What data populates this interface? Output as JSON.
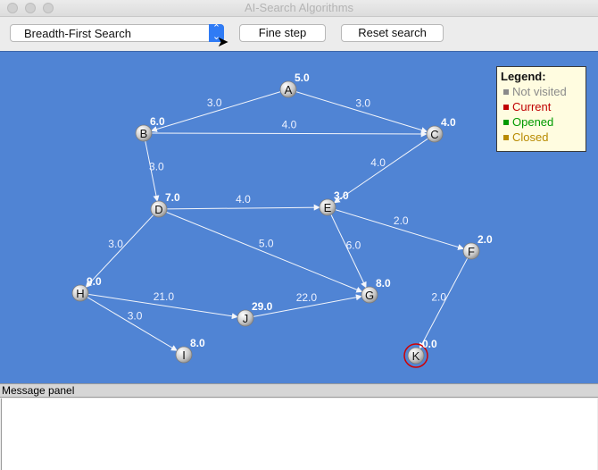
{
  "window": {
    "title": "AI-Search Algorithms"
  },
  "toolbar": {
    "algorithm_selected": "Breadth-First Search",
    "select_arrows": "⌃⌄",
    "fine_step_label": "Fine step",
    "reset_label": "Reset search"
  },
  "legend": {
    "title": "Legend:",
    "items": [
      {
        "label": "Not visited",
        "color": "#8a8a8a"
      },
      {
        "label": "Current",
        "color": "#c00000"
      },
      {
        "label": "Opened",
        "color": "#009a00"
      },
      {
        "label": "Closed",
        "color": "#b88a00"
      }
    ]
  },
  "graph": {
    "nodes": [
      {
        "id": "A",
        "h": "5.0",
        "state": "not-visited"
      },
      {
        "id": "B",
        "h": "6.0",
        "state": "not-visited"
      },
      {
        "id": "C",
        "h": "4.0",
        "state": "not-visited"
      },
      {
        "id": "D",
        "h": "7.0",
        "state": "not-visited"
      },
      {
        "id": "E",
        "h": "3.0",
        "state": "not-visited"
      },
      {
        "id": "F",
        "h": "2.0",
        "state": "not-visited"
      },
      {
        "id": "G",
        "h": "8.0",
        "state": "not-visited"
      },
      {
        "id": "H",
        "h": "9.0",
        "state": "not-visited"
      },
      {
        "id": "I",
        "h": "8.0",
        "state": "not-visited"
      },
      {
        "id": "J",
        "h": "29.0",
        "state": "not-visited"
      },
      {
        "id": "K",
        "h": "0.0",
        "state": "goal"
      }
    ],
    "edges": [
      {
        "from": "A",
        "to": "B",
        "w": "3.0"
      },
      {
        "from": "A",
        "to": "C",
        "w": "3.0"
      },
      {
        "from": "B",
        "to": "C",
        "w": "4.0"
      },
      {
        "from": "B",
        "to": "D",
        "w": "3.0"
      },
      {
        "from": "C",
        "to": "E",
        "w": "4.0"
      },
      {
        "from": "D",
        "to": "E",
        "w": "4.0"
      },
      {
        "from": "D",
        "to": "G",
        "w": "5.0"
      },
      {
        "from": "D",
        "to": "H",
        "w": "3.0"
      },
      {
        "from": "E",
        "to": "F",
        "w": "2.0"
      },
      {
        "from": "E",
        "to": "G",
        "w": "6.0"
      },
      {
        "from": "H",
        "to": "J",
        "w": "21.0"
      },
      {
        "from": "H",
        "to": "I",
        "w": "3.0"
      },
      {
        "from": "J",
        "to": "G",
        "w": "22.0"
      },
      {
        "from": "F",
        "to": "K",
        "w": "2.0"
      }
    ]
  },
  "message_panel": {
    "title": "Message panel",
    "text": ""
  }
}
